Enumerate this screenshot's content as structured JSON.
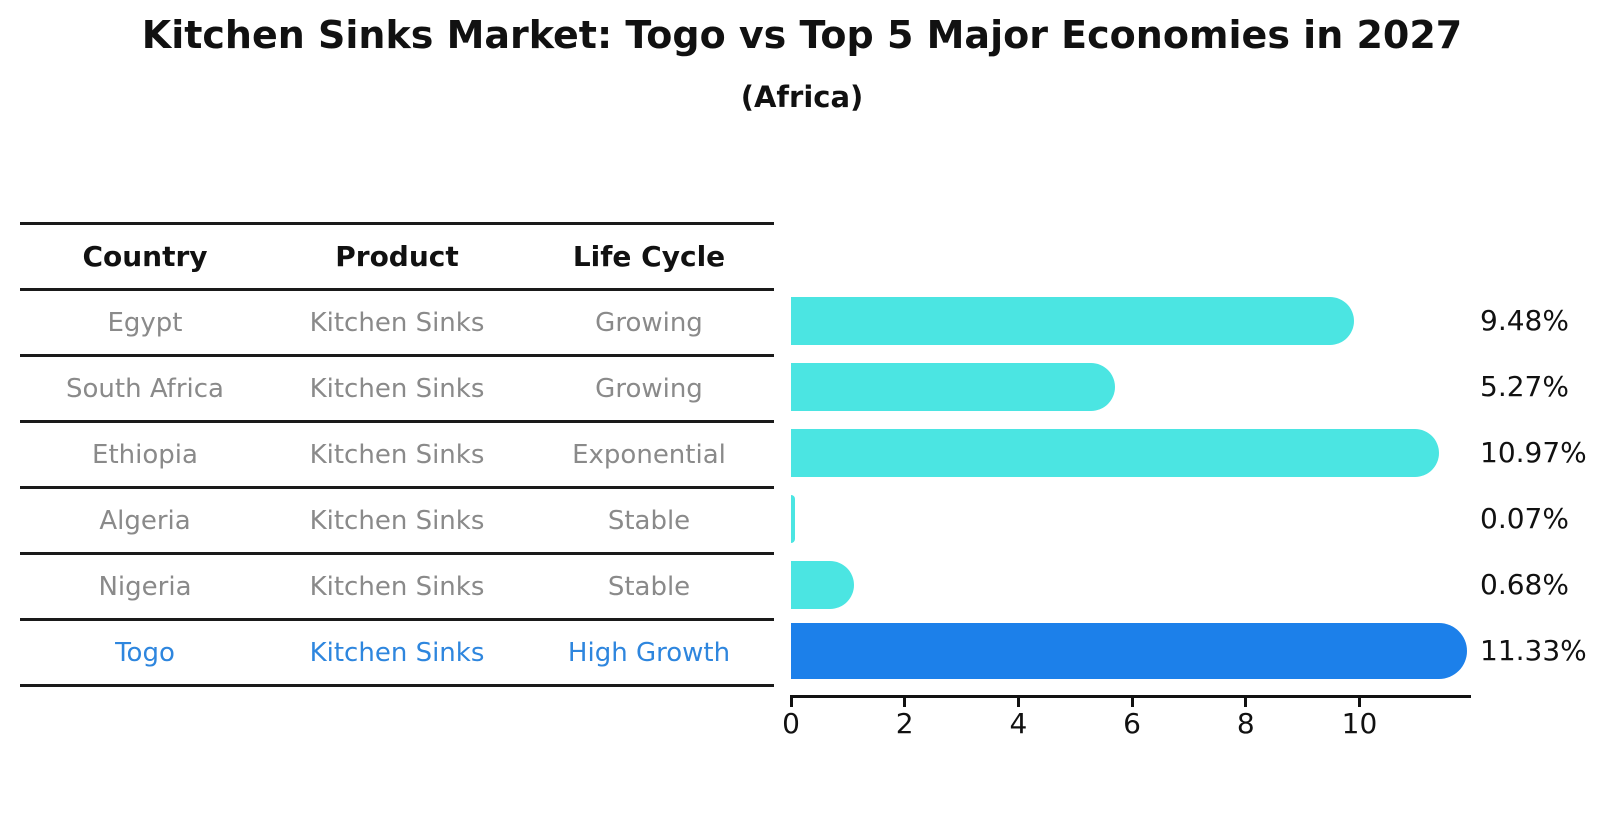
{
  "title": "Kitchen Sinks Market: Togo vs Top 5 Major Economies in 2027",
  "subtitle": "(Africa)",
  "table": {
    "headers": [
      "Country",
      "Product",
      "Life Cycle"
    ],
    "rows": [
      {
        "country": "Egypt",
        "product": "Kitchen Sinks",
        "life_cycle": "Growing",
        "highlight": false
      },
      {
        "country": "South Africa",
        "product": "Kitchen Sinks",
        "life_cycle": "Growing",
        "highlight": false
      },
      {
        "country": "Ethiopia",
        "product": "Kitchen Sinks",
        "life_cycle": "Exponential",
        "highlight": false
      },
      {
        "country": "Algeria",
        "product": "Kitchen Sinks",
        "life_cycle": "Stable",
        "highlight": false
      },
      {
        "country": "Nigeria",
        "product": "Kitchen Sinks",
        "life_cycle": "Stable",
        "highlight": false
      },
      {
        "country": "Togo",
        "product": "Kitchen Sinks",
        "life_cycle": "High Growth",
        "highlight": true
      }
    ]
  },
  "chart_data": {
    "type": "bar",
    "orientation": "horizontal",
    "title": "Kitchen Sinks Market: Togo vs Top 5 Major Economies in 2027",
    "subtitle": "(Africa)",
    "categories": [
      "Egypt",
      "South Africa",
      "Ethiopia",
      "Algeria",
      "Nigeria",
      "Togo"
    ],
    "values": [
      9.48,
      5.27,
      10.97,
      0.07,
      0.68,
      11.33
    ],
    "value_labels": [
      "9.48%",
      "5.27%",
      "10.97%",
      "0.07%",
      "0.68%",
      "11.33%"
    ],
    "xlabel": "",
    "ylabel": "",
    "xlim": [
      0,
      11.93
    ],
    "x_ticks": [
      0,
      2,
      4,
      6,
      8,
      10
    ],
    "grid": false,
    "legend": false,
    "bar_color": "#4be5e2",
    "highlight_bar_color": "#1c80ea",
    "highlight_index": 5,
    "highlight_text_color": "#2e86de",
    "table_text_color": "#8a8a8a",
    "axis_color": "#111111"
  }
}
